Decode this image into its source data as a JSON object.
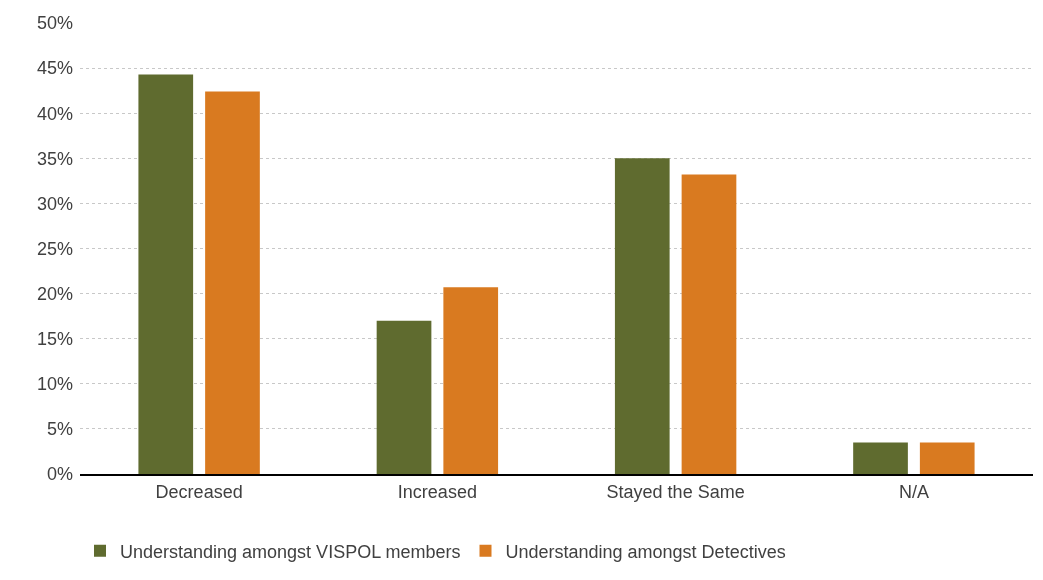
{
  "chart_data": {
    "type": "bar",
    "categories": [
      "Decreased",
      "Increased",
      "Stayed the Same",
      "N/A"
    ],
    "series": [
      {
        "name": "Understanding amongst VISPOL members",
        "color": "#5f6b2f",
        "values": [
          44.3,
          17.0,
          35.0,
          3.5
        ]
      },
      {
        "name": "Understanding amongst Detectives",
        "color": "#d97a20",
        "values": [
          42.4,
          20.7,
          33.2,
          3.5
        ]
      }
    ],
    "ylim": [
      0,
      50
    ],
    "yticks": [
      {
        "value": 0,
        "label": "0%"
      },
      {
        "value": 5,
        "label": "5%"
      },
      {
        "value": 10,
        "label": "10%"
      },
      {
        "value": 15,
        "label": "15%"
      },
      {
        "value": 20,
        "label": "20%"
      },
      {
        "value": 25,
        "label": "25%"
      },
      {
        "value": 30,
        "label": "30%"
      },
      {
        "value": 35,
        "label": "35%"
      },
      {
        "value": 40,
        "label": "40%"
      },
      {
        "value": 45,
        "label": "45%"
      },
      {
        "value": 50,
        "label": "50%"
      }
    ],
    "grid": "y",
    "legend": "bottom left"
  }
}
